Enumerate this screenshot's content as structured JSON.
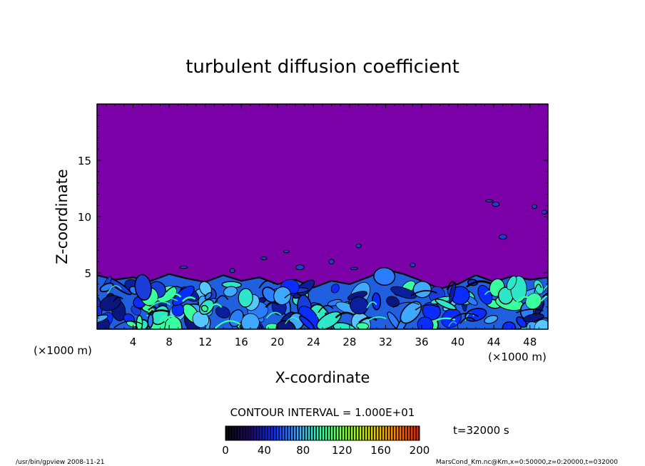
{
  "chart_data": {
    "type": "heatmap",
    "title": "turbulent diffusion coefficient",
    "xlabel": "X-coordinate",
    "ylabel": "Z-coordinate",
    "x_unit": "(×1000 m)",
    "y_unit": "(×1000 m)",
    "xlim": [
      0,
      50
    ],
    "ylim": [
      0,
      20
    ],
    "x_ticks": [
      4,
      8,
      12,
      16,
      20,
      24,
      28,
      32,
      36,
      40,
      44,
      48
    ],
    "y_ticks": [
      5,
      10,
      15
    ],
    "contour_interval": "CONTOUR INTERVAL = 1.000E+01",
    "time_label": "t=32000 s",
    "colorbar": {
      "min": 0,
      "max": 200,
      "ticks": [
        0,
        40,
        80,
        120,
        160,
        200
      ],
      "colors": [
        "#000000",
        "#1a0066",
        "#0a2cff",
        "#3fa9ff",
        "#38ffa0",
        "#7bff3a",
        "#d8e000",
        "#ff8a00",
        "#e02000"
      ]
    },
    "background_color": "#7b00a8",
    "boundary_layer": {
      "description_free": true,
      "top_height_by_x": [
        [
          0,
          4.8
        ],
        [
          2,
          4.4
        ],
        [
          4,
          4.6
        ],
        [
          6,
          4.3
        ],
        [
          8,
          4.9
        ],
        [
          10,
          4.5
        ],
        [
          12,
          4.2
        ],
        [
          14,
          4.8
        ],
        [
          16,
          4.3
        ],
        [
          18,
          4.6
        ],
        [
          20,
          4.0
        ],
        [
          22,
          4.4
        ],
        [
          24,
          3.7
        ],
        [
          26,
          4.3
        ],
        [
          28,
          4.0
        ],
        [
          30,
          4.6
        ],
        [
          32,
          5.3
        ],
        [
          34,
          4.9
        ],
        [
          36,
          4.3
        ],
        [
          38,
          3.6
        ],
        [
          40,
          4.0
        ],
        [
          42,
          4.8
        ],
        [
          44,
          4.2
        ],
        [
          46,
          4.7
        ],
        [
          48,
          4.4
        ],
        [
          50,
          4.6
        ]
      ]
    }
  },
  "footer": {
    "left": "/usr/bin/gpview  2008-11-21",
    "right": "MarsCond_Km.nc@Km,x=0:50000,z=0:20000,t=032000"
  }
}
